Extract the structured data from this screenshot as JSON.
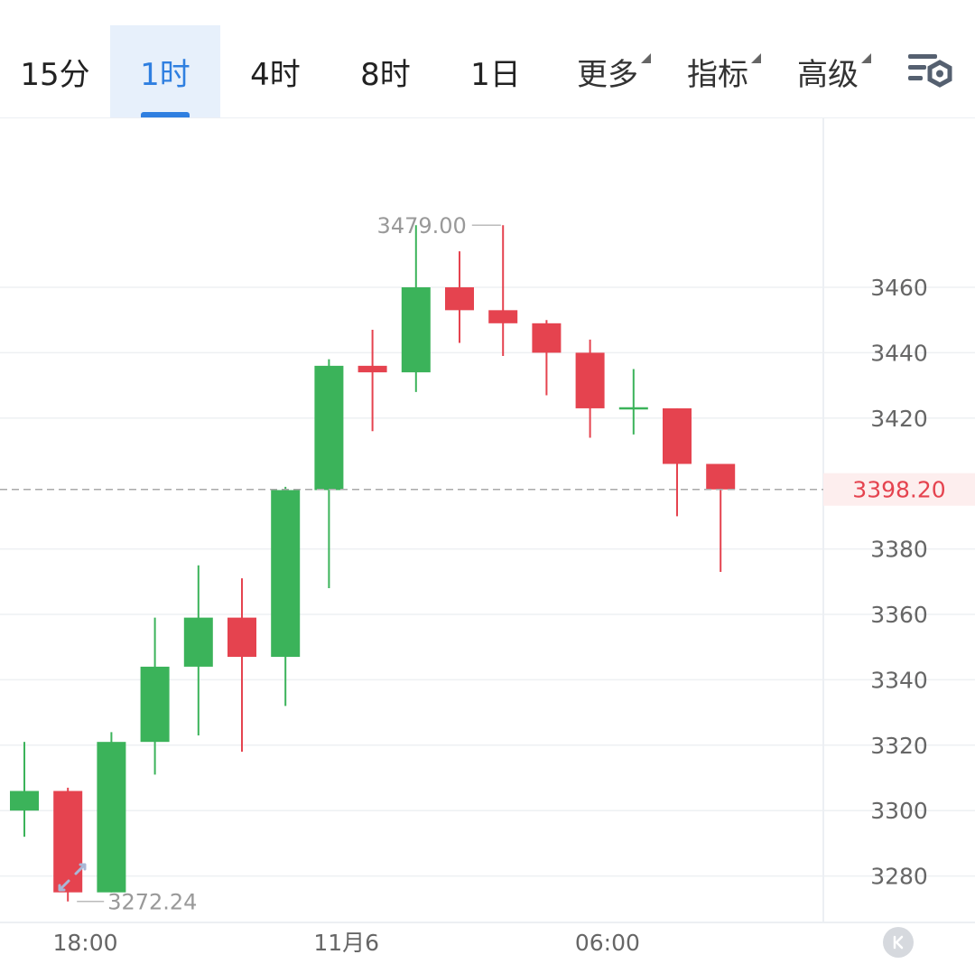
{
  "tabs": [
    {
      "label": "15分",
      "active": false
    },
    {
      "label": "1时",
      "active": true
    },
    {
      "label": "4时",
      "active": false
    },
    {
      "label": "8时",
      "active": false
    },
    {
      "label": "1日",
      "active": false
    }
  ],
  "menus": [
    {
      "label": "更多"
    },
    {
      "label": "指标"
    },
    {
      "label": "高级"
    }
  ],
  "icons": {
    "settings": "chart-settings-icon",
    "fullscreen": "expand-arrows-icon",
    "collapse": "collapse-k-icon"
  },
  "colors": {
    "up": "#3bb35a",
    "down": "#e5434f",
    "accent": "#2f7fe0",
    "current_price": "#e5434f",
    "grid": "#eef0f3",
    "label": "#999999"
  },
  "chart_data": {
    "type": "candlestick",
    "ylim": [
      3265,
      3500
    ],
    "y_ticks": [
      3280,
      3300,
      3320,
      3340,
      3360,
      3380,
      3420,
      3440,
      3460
    ],
    "x_labels": [
      "18:00",
      "11月6",
      "06:00"
    ],
    "x_label_candle_index": [
      1.4,
      7.4,
      13.4
    ],
    "candles": [
      {
        "open": 3300,
        "high": 3321,
        "low": 3292,
        "close": 3306
      },
      {
        "open": 3306,
        "high": 3307,
        "low": 3272.24,
        "close": 3275
      },
      {
        "open": 3275,
        "high": 3324,
        "low": 3275,
        "close": 3321
      },
      {
        "open": 3321,
        "high": 3359,
        "low": 3311,
        "close": 3344
      },
      {
        "open": 3344,
        "high": 3375,
        "low": 3323,
        "close": 3359
      },
      {
        "open": 3359,
        "high": 3371,
        "low": 3318,
        "close": 3347
      },
      {
        "open": 3347,
        "high": 3399,
        "low": 3332,
        "close": 3398
      },
      {
        "open": 3398,
        "high": 3438,
        "low": 3368,
        "close": 3436
      },
      {
        "open": 3436,
        "high": 3447,
        "low": 3416,
        "close": 3434
      },
      {
        "open": 3434,
        "high": 3479,
        "low": 3428,
        "close": 3460
      },
      {
        "open": 3460,
        "high": 3471,
        "low": 3443,
        "close": 3453
      },
      {
        "open": 3453,
        "high": 3479,
        "low": 3439,
        "close": 3449
      },
      {
        "open": 3449,
        "high": 3450,
        "low": 3427,
        "close": 3440
      },
      {
        "open": 3440,
        "high": 3444,
        "low": 3414,
        "close": 3423
      },
      {
        "open": 3423,
        "high": 3435,
        "low": 3415,
        "close": 3423
      },
      {
        "open": 3423,
        "high": 3423,
        "low": 3390,
        "close": 3406
      },
      {
        "open": 3406,
        "high": 3406,
        "low": 3373,
        "close": 3398.2
      }
    ],
    "high_marker": {
      "label": "3479.00",
      "value": 3479,
      "candle_index": 9
    },
    "low_marker": {
      "label": "3272.24",
      "value": 3272.24,
      "candle_index": 1
    },
    "current_price": {
      "value": 3398.2,
      "label": "3398.20"
    }
  }
}
